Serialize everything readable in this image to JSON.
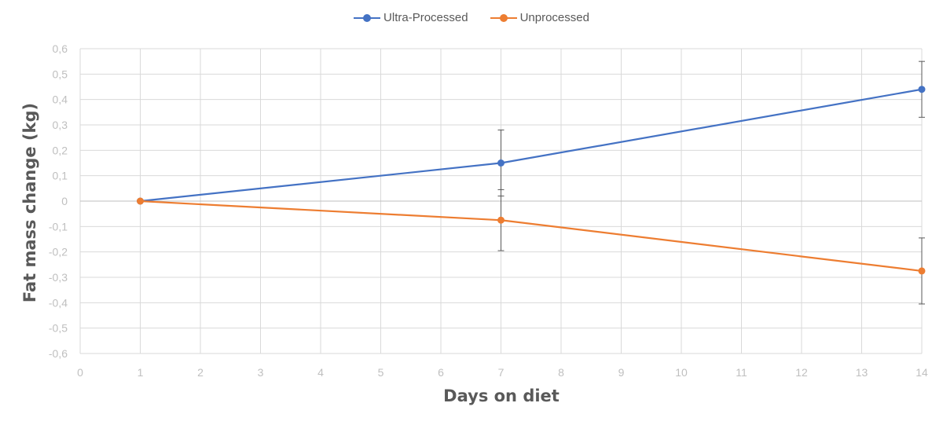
{
  "chart_data": {
    "type": "line",
    "xlabel": "Days on diet",
    "ylabel": "Fat mass change (kg)",
    "xlim": [
      0,
      14
    ],
    "ylim": [
      -0.6,
      0.6
    ],
    "x_ticks": [
      0,
      1,
      2,
      3,
      4,
      5,
      6,
      7,
      8,
      9,
      10,
      11,
      12,
      13,
      14
    ],
    "y_ticks": [
      -0.6,
      -0.5,
      -0.4,
      -0.3,
      -0.2,
      -0.1,
      0,
      0.1,
      0.2,
      0.3,
      0.4,
      0.5,
      0.6
    ],
    "y_tick_labels": [
      "-0,6",
      "-0,5",
      "-0,4",
      "-0,3",
      "-0,2",
      "-0,1",
      "0",
      "0,1",
      "0,2",
      "0,3",
      "0,4",
      "0,5",
      "0,6"
    ],
    "grid": true,
    "legend_position": "top-center",
    "series": [
      {
        "name": "Ultra-Processed",
        "color": "#4472C4",
        "x": [
          1,
          7,
          14
        ],
        "y": [
          0,
          0.15,
          0.44
        ],
        "error": [
          0,
          0.13,
          0.11
        ]
      },
      {
        "name": "Unprocessed",
        "color": "#ED7D31",
        "x": [
          1,
          7,
          14
        ],
        "y": [
          0,
          -0.075,
          -0.275
        ],
        "error": [
          0,
          0.12,
          0.13
        ]
      }
    ]
  }
}
